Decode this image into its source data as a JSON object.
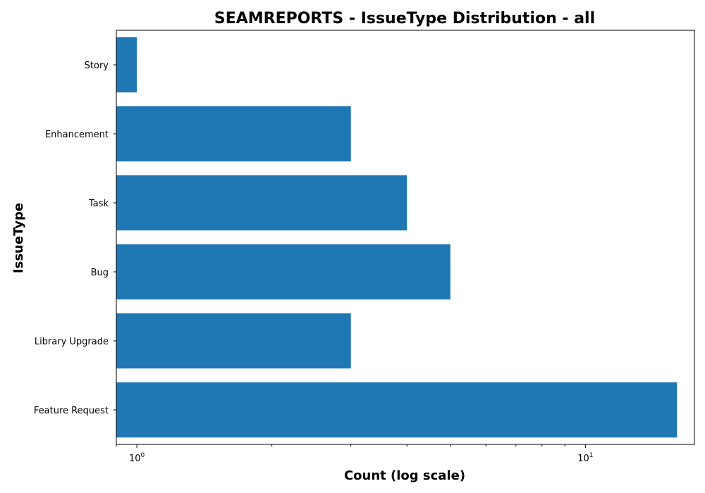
{
  "chart_data": {
    "type": "bar",
    "orientation": "horizontal",
    "title": "SEAMREPORTS - IssueType Distribution - all",
    "xlabel": "Count (log scale)",
    "ylabel": "IssueType",
    "x_scale": "log",
    "xlim": [
      0.9,
      17.5
    ],
    "x_ticks": [
      {
        "value": 1,
        "base": "10",
        "exponent": "0"
      },
      {
        "value": 10,
        "base": "10",
        "exponent": "1"
      }
    ],
    "categories": [
      "Feature Request",
      "Library Upgrade",
      "Bug",
      "Task",
      "Enhancement",
      "Story"
    ],
    "values": [
      16,
      3,
      5,
      4,
      3,
      1
    ],
    "bar_color": "#1f77b4",
    "grid": false,
    "legend": false
  }
}
